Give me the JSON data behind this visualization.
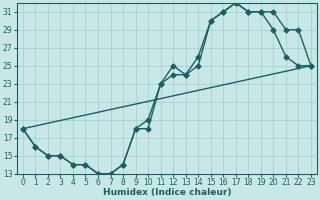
{
  "xlabel": "Humidex (Indice chaleur)",
  "bg_color": "#c8e8e8",
  "line_color": "#1a6060",
  "grid_color": "#a8d0d0",
  "xlim": [
    -0.5,
    23.5
  ],
  "ylim": [
    13,
    32
  ],
  "xticks": [
    0,
    1,
    2,
    3,
    4,
    5,
    6,
    7,
    8,
    9,
    10,
    11,
    12,
    13,
    14,
    15,
    16,
    17,
    18,
    19,
    20,
    21,
    22,
    23
  ],
  "yticks": [
    13,
    15,
    17,
    19,
    21,
    23,
    25,
    27,
    29,
    31
  ],
  "curve1_x": [
    0,
    1,
    2,
    3,
    4,
    5,
    6,
    7,
    8,
    9,
    10,
    11,
    12,
    13,
    14,
    15,
    16,
    17,
    18,
    19,
    20,
    21,
    22,
    23
  ],
  "curve1_y": [
    18,
    16,
    15,
    15,
    14,
    14,
    13,
    13,
    14,
    18,
    19,
    23,
    25,
    24,
    26,
    30,
    31,
    32,
    31,
    31,
    29,
    26,
    25,
    25
  ],
  "curve2_x": [
    0,
    1,
    2,
    3,
    4,
    5,
    6,
    7,
    8,
    9,
    10,
    11,
    12,
    13,
    14,
    15,
    16,
    17,
    18,
    19,
    20,
    21,
    22,
    23
  ],
  "curve2_y": [
    18,
    16,
    15,
    15,
    14,
    14,
    13,
    13,
    14,
    18,
    18,
    23,
    24,
    24,
    25,
    30,
    31,
    32,
    31,
    31,
    31,
    29,
    29,
    25
  ],
  "line3_x": [
    0,
    23
  ],
  "line3_y": [
    18,
    25
  ],
  "marker": "D",
  "marker_size": 2.5,
  "line_width": 1.0
}
